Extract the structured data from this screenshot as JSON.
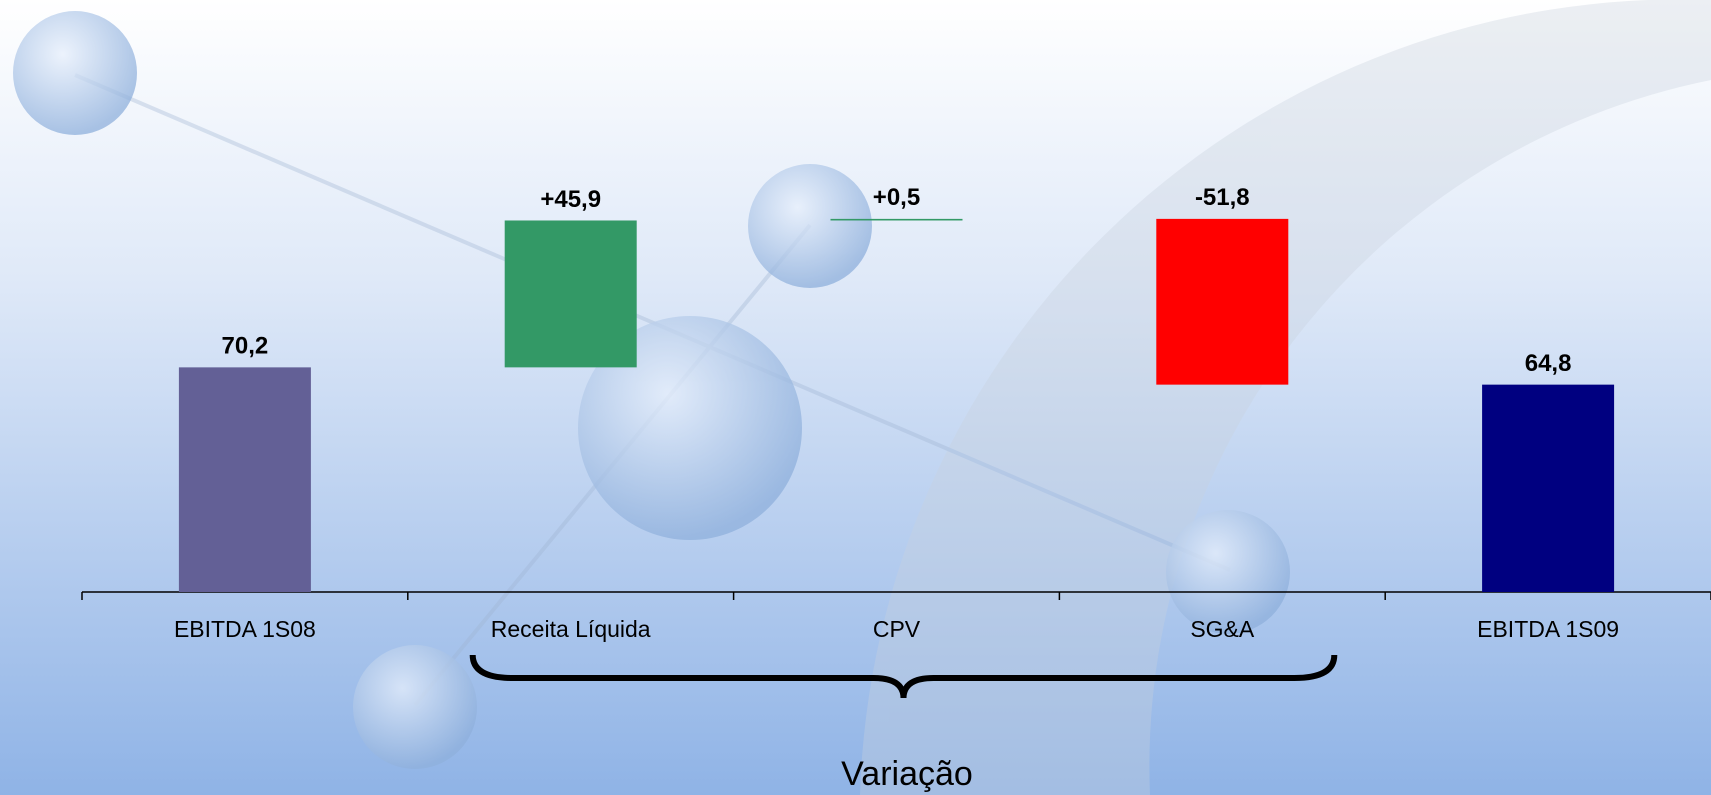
{
  "chart_data": {
    "type": "waterfall",
    "categories": [
      "EBITDA 1S08",
      "Receita Líquida",
      "CPV",
      "SG&A",
      "EBITDA 1S09"
    ],
    "values": [
      70.2,
      45.9,
      0.5,
      -51.8,
      64.8
    ],
    "value_labels": [
      "70,2",
      "+45,9",
      "+0,5",
      "-51,8",
      "64,8"
    ],
    "measure": [
      "absolute",
      "relative",
      "relative",
      "relative",
      "total"
    ],
    "colors": [
      "#636096",
      "#339966",
      "#339966",
      "#ff0000",
      "#000080"
    ],
    "annotation": "Variação"
  }
}
